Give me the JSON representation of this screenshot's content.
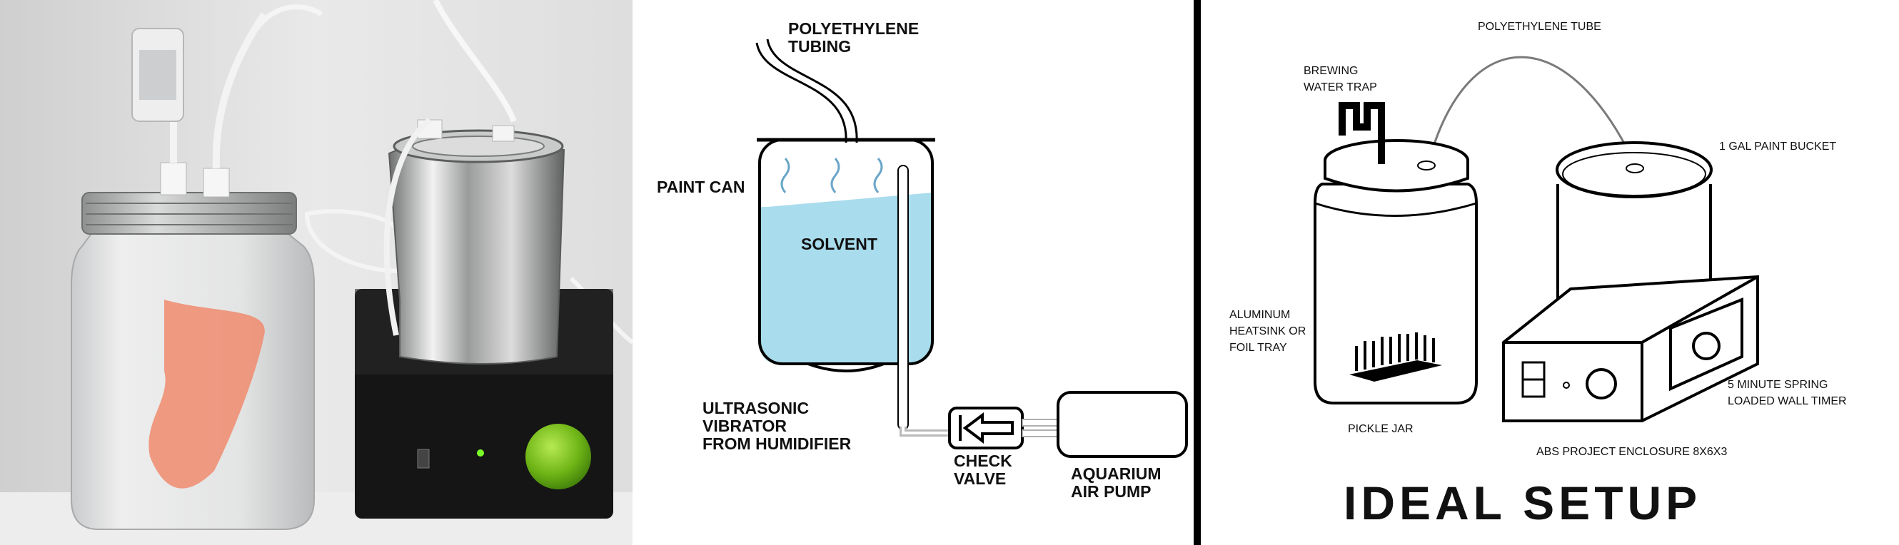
{
  "photo": {
    "description_icon": "photo-icon"
  },
  "schematic": {
    "tubing": "POLYETHYLENE\nTUBING",
    "paint_can": "PAINT CAN",
    "solvent": "SOLVENT",
    "vibrator": "ULTRASONIC\nVIBRATOR\nFROM HUMIDIFIER",
    "check_valve": "CHECK\nVALVE",
    "air_pump": "AQUARIUM\nAIR PUMP"
  },
  "ideal": {
    "polyethylene_tube": "POLYETHYLENE TUBE",
    "water_trap": "BREWING\nWATER TRAP",
    "paint_bucket": "1 GAL PAINT BUCKET",
    "heatsink": "ALUMINUM\nHEATSINK OR\nFOIL TRAY",
    "pickle_jar": "PICKLE JAR",
    "timer": "5 MINUTE SPRING\nLOADED WALL TIMER",
    "enclosure": "ABS PROJECT ENCLOSURE 8X6X3",
    "title": "IDEAL SETUP"
  },
  "colors": {
    "solvent": "#a9dcec",
    "lid": "#b8b9b8",
    "box": "#1a1a1a",
    "apple": "#7cc21e",
    "divider": "#000000"
  }
}
